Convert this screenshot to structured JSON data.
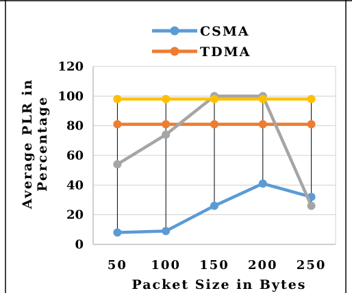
{
  "chart_data": {
    "type": "line",
    "title": "",
    "xlabel": "Packet Size in Bytes",
    "ylabel": "Average PLR in Percentage",
    "ylabel_lines": [
      "Average PLR in",
      "Percentage"
    ],
    "categories": [
      "50",
      "100",
      "150",
      "200",
      "250"
    ],
    "ylim": [
      0,
      120
    ],
    "yticks": [
      "0",
      "20",
      "40",
      "60",
      "80",
      "100",
      "120"
    ],
    "grid": true,
    "legend_position": "top-center",
    "series": [
      {
        "name": "CSMA",
        "color": "#5b9bd5",
        "values": [
          8,
          9,
          26,
          41,
          32
        ],
        "in_legend": true
      },
      {
        "name": "TDMA",
        "color": "#ed7d31",
        "values": [
          81,
          81,
          81,
          81,
          81
        ],
        "in_legend": true
      },
      {
        "name": "",
        "color": "#a5a5a5",
        "values": [
          54,
          74,
          100,
          100,
          26
        ],
        "in_legend": false
      },
      {
        "name": "",
        "color": "#ffc000",
        "values": [
          98,
          98,
          98,
          98,
          98
        ],
        "in_legend": false
      }
    ],
    "drop_lines": true
  }
}
